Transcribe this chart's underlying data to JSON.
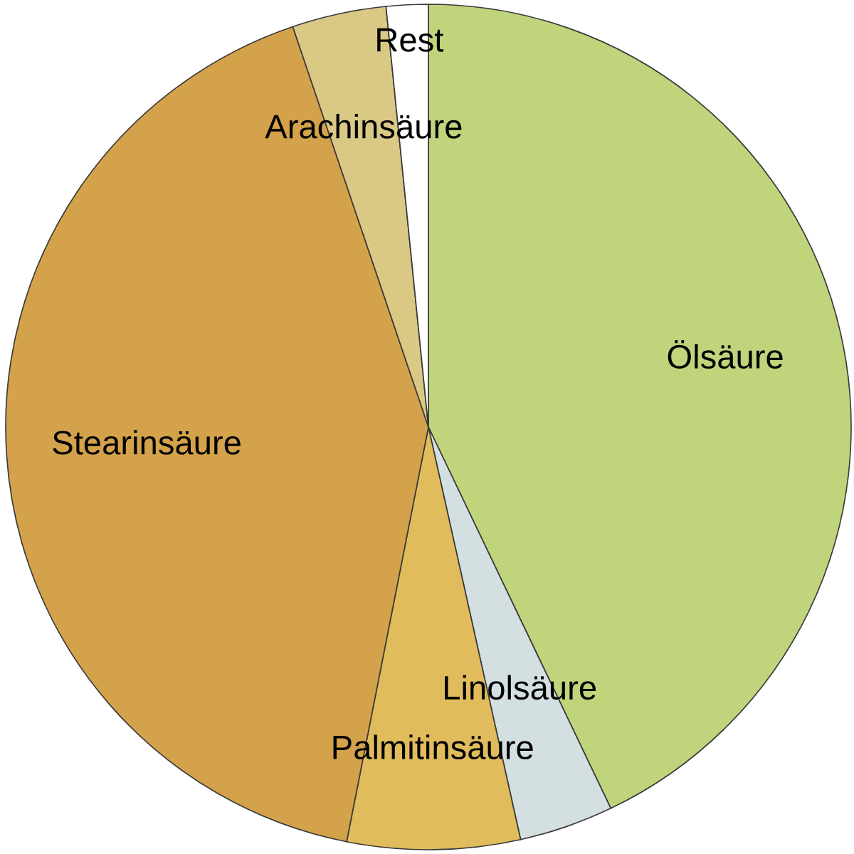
{
  "chart_data": {
    "type": "pie",
    "categories": [
      "Ölsäure",
      "Linolsäure",
      "Palmitinsäure",
      "Stearinsäure",
      "Arachinsäure",
      "Rest"
    ],
    "values": [
      42.9,
      3.6,
      6.6,
      41.7,
      3.6,
      1.6
    ],
    "colors": [
      "#c0d47c",
      "#d4dfe2",
      "#e0bc5c",
      "#d4a24a",
      "#d9c985",
      "#ffffff"
    ]
  }
}
